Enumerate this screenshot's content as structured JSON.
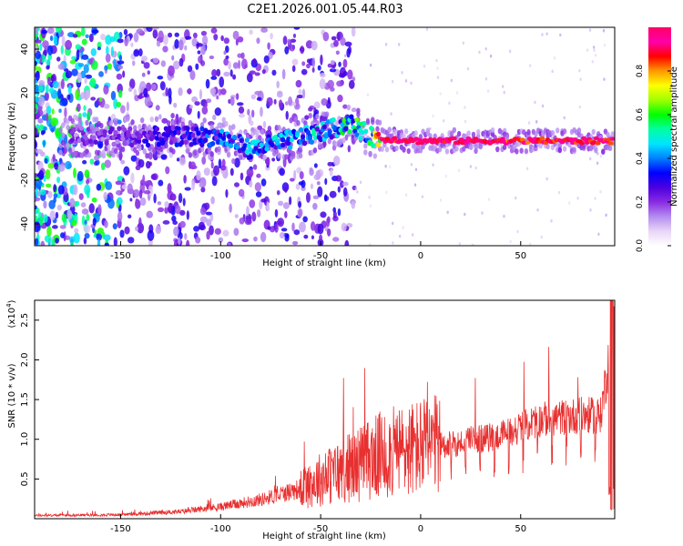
{
  "title": "C2E1.2026.001.05.44.R03",
  "chart_data": [
    {
      "type": "heatmap",
      "xlabel": "Height of straight line (km)",
      "ylabel": "Frequency (Hz)",
      "xlim": [
        -193,
        97
      ],
      "ylim": [
        -50,
        50
      ],
      "xticks": [
        -150,
        -100,
        -50,
        0,
        50
      ],
      "yticks": [
        -40,
        -20,
        0,
        20,
        40
      ],
      "colorbar": {
        "label": "Normalized spectral amplitude",
        "range": [
          0.0,
          1.0
        ],
        "ticks": [
          0.0,
          0.2,
          0.4,
          0.6,
          0.8
        ],
        "stops": [
          "#ffffff",
          "#e9d5f7",
          "#b48cf0",
          "#8a2be2",
          "#4b00e0",
          "#0000ff",
          "#0080ff",
          "#00e5ff",
          "#00ffa0",
          "#00ff00",
          "#a0ff00",
          "#ffff00",
          "#ff9900",
          "#ff0000",
          "#ff00aa",
          "#ff0066"
        ]
      },
      "ridge": {
        "x": [
          -193,
          -150,
          -100,
          -85,
          -50,
          -35,
          -25,
          -20,
          0,
          50,
          95
        ],
        "freq_center": [
          0,
          0,
          0,
          -6,
          2,
          6,
          0,
          -1,
          -2,
          -2,
          -2
        ],
        "peak_amplitude": [
          0.2,
          0.25,
          0.4,
          0.45,
          0.5,
          0.6,
          0.6,
          0.98,
          0.98,
          0.95,
          0.95
        ]
      }
    },
    {
      "type": "line",
      "xlabel": "Height of straight line (km)",
      "ylabel": "SNR (10 * v/v)",
      "yscale_note": "(x10",
      "yscale_exp": "4",
      "xlim": [
        -193,
        97
      ],
      "ylim": [
        0,
        27500
      ],
      "xticks": [
        -150,
        -100,
        -50,
        0,
        50
      ],
      "yticks": [
        5000,
        10000,
        15000,
        20000,
        25000
      ],
      "ytick_labels": [
        "0.5",
        "1.0",
        "1.5",
        "2.0",
        "2.5"
      ],
      "series": [
        {
          "name": "SNR",
          "color": "#e83030",
          "x": [
            -193,
            -150,
            -120,
            -100,
            -80,
            -60,
            -50,
            -40,
            -30,
            -20,
            -10,
            0,
            20,
            40,
            60,
            80,
            90,
            94,
            97
          ],
          "y": [
            400,
            500,
            900,
            1500,
            2400,
            3800,
            5000,
            6000,
            7000,
            8000,
            8500,
            9000,
            9500,
            10500,
            12500,
            13000,
            13000,
            20000,
            5000
          ]
        }
      ]
    }
  ]
}
